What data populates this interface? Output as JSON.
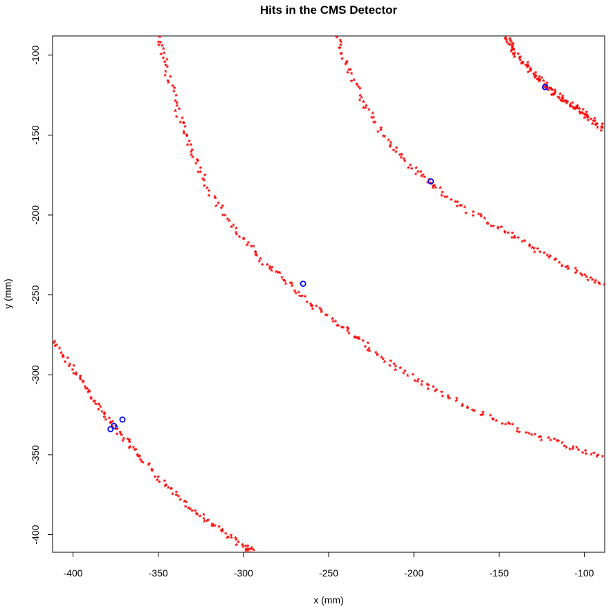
{
  "chart_data": {
    "type": "scatter",
    "title": "Hits in the CMS Detector",
    "xlabel": "x (mm)",
    "ylabel": "y (mm)",
    "xlim": [
      -412,
      -88
    ],
    "ylim": [
      -411,
      -88
    ],
    "xticks": [
      -400,
      -350,
      -300,
      -250,
      -200,
      -150,
      -100
    ],
    "yticks": [
      -100,
      -150,
      -200,
      -250,
      -300,
      -350,
      -400
    ],
    "grid": false,
    "colors": {
      "hits": "#ff0000",
      "track_points": "#0000ff"
    },
    "series": [
      {
        "marker": "asterisk",
        "color": "#ff0000",
        "arcs": [
          {
            "path": [
              [
                -412,
                -280
              ],
              [
                -400,
                -297
              ],
              [
                -390,
                -312
              ],
              [
                -380,
                -328
              ],
              [
                -370,
                -340
              ],
              [
                -360,
                -353
              ],
              [
                -345,
                -370
              ],
              [
                -330,
                -385
              ],
              [
                -315,
                -397
              ],
              [
                -300,
                -408
              ],
              [
                -293,
                -411
              ]
            ],
            "points_per_segment": 14
          },
          {
            "path": [
              [
                -350,
                -88
              ],
              [
                -345,
                -110
              ],
              [
                -338,
                -138
              ],
              [
                -330,
                -160
              ],
              [
                -320,
                -185
              ],
              [
                -305,
                -210
              ],
              [
                -290,
                -228
              ],
              [
                -275,
                -242
              ],
              [
                -258,
                -258
              ],
              [
                -240,
                -272
              ],
              [
                -225,
                -285
              ],
              [
                -205,
                -300
              ],
              [
                -185,
                -312
              ],
              [
                -160,
                -325
              ],
              [
                -135,
                -336
              ],
              [
                -110,
                -345
              ],
              [
                -88,
                -352
              ]
            ],
            "points_per_segment": 14
          },
          {
            "path": [
              [
                -245,
                -88
              ],
              [
                -238,
                -110
              ],
              [
                -228,
                -132
              ],
              [
                -215,
                -155
              ],
              [
                -200,
                -172
              ],
              [
                -185,
                -185
              ],
              [
                -165,
                -200
              ],
              [
                -145,
                -212
              ],
              [
                -125,
                -224
              ],
              [
                -105,
                -236
              ],
              [
                -88,
                -245
              ]
            ],
            "points_per_segment": 14
          },
          {
            "path": [
              [
                -146,
                -88
              ],
              [
                -140,
                -100
              ],
              [
                -130,
                -112
              ],
              [
                -120,
                -122
              ],
              [
                -110,
                -130
              ],
              [
                -100,
                -137
              ],
              [
                -88,
                -147
              ]
            ],
            "points_per_segment": 22
          }
        ]
      },
      {
        "marker": "circle",
        "color": "#0000ff",
        "points": [
          {
            "x": -378,
            "y": -334
          },
          {
            "x": -376,
            "y": -332
          },
          {
            "x": -371,
            "y": -328
          },
          {
            "x": -265,
            "y": -243
          },
          {
            "x": -190,
            "y": -179
          },
          {
            "x": -123,
            "y": -120
          }
        ]
      }
    ]
  }
}
